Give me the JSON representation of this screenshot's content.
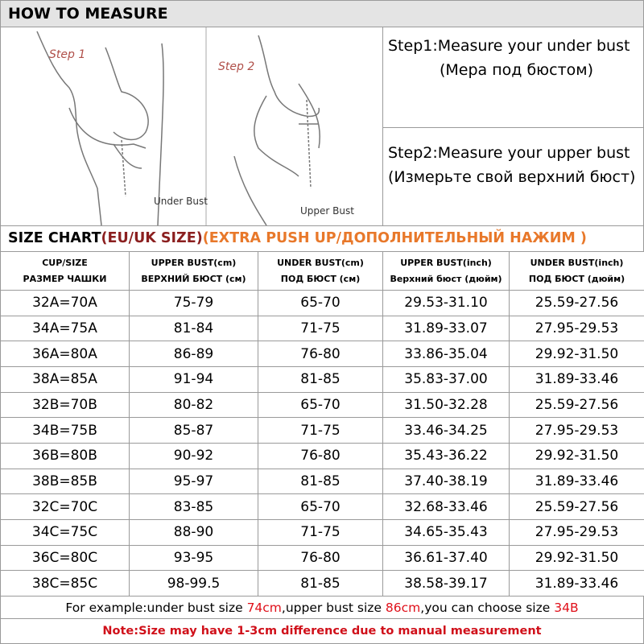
{
  "header": {
    "title": "HOW TO MEASURE"
  },
  "illustrations": [
    {
      "step": "Step 1",
      "label": "Under Bust"
    },
    {
      "step": "Step 2",
      "label": "Upper Bust"
    }
  ],
  "steps": [
    {
      "lines": [
        "Step1:Measure your under bust",
        "(Мера под бюстом)"
      ]
    },
    {
      "lines": [
        "Step2:Measure your upper bust (Измерьте свой верхний бюст)"
      ]
    }
  ],
  "size_chart": {
    "title": [
      "SIZE CHART",
      "(EU/UK SIZE)",
      "(EXTRA PUSH UP/ДОПОЛНИТЕЛЬНЫЙ НАЖИМ )"
    ]
  },
  "table": {
    "columns": [
      [
        "CUP/SIZE",
        "РАЗМЕР ЧАШКИ"
      ],
      [
        "UPPER BUST(cm)",
        "ВЕРХНИЙ БЮСТ (см)"
      ],
      [
        "UNDER BUST(cm)",
        "ПОД БЮСТ (см)"
      ],
      [
        "UPPER BUST(inch)",
        "Верхний бюст (дюйм)"
      ],
      [
        "UNDER BUST(inch)",
        "ПОД БЮСТ (дюйм)"
      ]
    ],
    "rows": [
      [
        "32A=70A",
        "75-79",
        "65-70",
        "29.53-31.10",
        "25.59-27.56"
      ],
      [
        "34A=75A",
        "81-84",
        "71-75",
        "31.89-33.07",
        "27.95-29.53"
      ],
      [
        "36A=80A",
        "86-89",
        "76-80",
        "33.86-35.04",
        "29.92-31.50"
      ],
      [
        "38A=85A",
        "91-94",
        "81-85",
        "35.83-37.00",
        "31.89-33.46"
      ],
      [
        "32B=70B",
        "80-82",
        "65-70",
        "31.50-32.28",
        "25.59-27.56"
      ],
      [
        "34B=75B",
        "85-87",
        "71-75",
        "33.46-34.25",
        "27.95-29.53"
      ],
      [
        "36B=80B",
        "90-92",
        "76-80",
        "35.43-36.22",
        "29.92-31.50"
      ],
      [
        "38B=85B",
        "95-97",
        "81-85",
        "37.40-38.19",
        "31.89-33.46"
      ],
      [
        "32C=70C",
        "83-85",
        "65-70",
        "32.68-33.46",
        "25.59-27.56"
      ],
      [
        "34C=75C",
        "88-90",
        "71-75",
        "34.65-35.43",
        "27.95-29.53"
      ],
      [
        "36C=80C",
        "93-95",
        "76-80",
        "36.61-37.40",
        "29.92-31.50"
      ],
      [
        "38C=85C",
        "98-99.5",
        "81-85",
        "38.58-39.17",
        "31.89-33.46"
      ]
    ]
  },
  "example": [
    "For example:under bust size ",
    "74cm",
    ",upper bust size ",
    "86cm",
    ",you can choose size ",
    "34B"
  ],
  "note": "Note:Size may have 1-3cm difference due to manual measurement"
}
